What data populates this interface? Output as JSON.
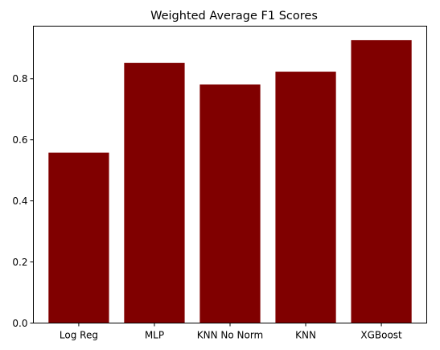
{
  "chart_data": {
    "type": "bar",
    "title": "Weighted Average F1 Scores",
    "xlabel": "",
    "ylabel": "",
    "categories": [
      "Log Reg",
      "MLP",
      "KNN No Norm",
      "KNN",
      "XGBoost"
    ],
    "values": [
      0.558,
      0.852,
      0.781,
      0.823,
      0.926
    ],
    "ylim": [
      0,
      0.972
    ],
    "yticks": [
      0.0,
      0.2,
      0.4,
      0.6,
      0.8
    ],
    "ytick_labels": [
      "0.0",
      "0.2",
      "0.4",
      "0.6",
      "0.8"
    ],
    "bar_color": "#800000",
    "grid": false,
    "legend": "none"
  }
}
